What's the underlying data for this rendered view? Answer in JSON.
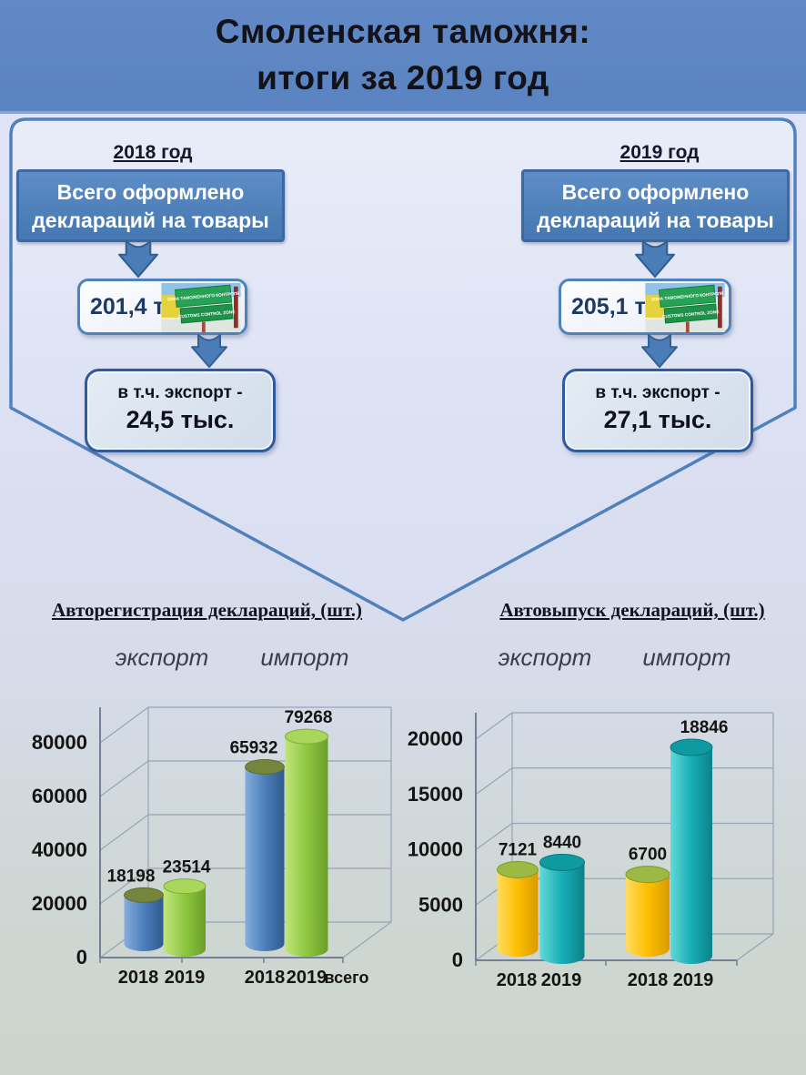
{
  "slide": {
    "title_line1": "Смоленская таможня:",
    "title_line2": "итоги за 2019 год"
  },
  "flow": {
    "years": [
      {
        "year_label": "2018 год",
        "box_line1": "Всего оформлено",
        "box_line2": "деклараций на товары",
        "total_value": "201,4 тыс.",
        "export_line1": "в т.ч. экспорт -",
        "export_value": "24,5 тыс."
      },
      {
        "year_label": "2019 год",
        "box_line1": "Всего оформлено",
        "box_line2": "деклараций на товары",
        "total_value": "205,1 тыс.",
        "export_line1": "в т.ч. экспорт -",
        "export_value": "27,1 тыс."
      }
    ],
    "sign": {
      "line1": "ЗОНА ТАМОЖЕННОГО КОНТРОЛЯ",
      "line2": "CUSTOMS CONTROL ZONE"
    }
  },
  "palette": {
    "blue": "#4d7fbb",
    "green": "#8fc742",
    "gold": "#fdbe00",
    "teal": "#16aeb4",
    "panel_border": "#4f81bd",
    "header_blue": "#5d86c4"
  },
  "chart_data": [
    {
      "type": "bar",
      "style": "3d-cylinder",
      "title": "Авторегистрация деклараций, (шт.)",
      "group_labels": [
        "экспорт",
        "импорт"
      ],
      "categories": [
        "2018",
        "2019",
        "2018",
        "2019",
        "всего"
      ],
      "bars": [
        {
          "group": "экспорт",
          "category": "2018",
          "value": 18198,
          "color": "blue"
        },
        {
          "group": "экспорт",
          "category": "2019",
          "value": 23514,
          "color": "green"
        },
        {
          "group": "импорт",
          "category": "2018",
          "value": 65932,
          "color": "blue"
        },
        {
          "group": "импорт",
          "category": "2019",
          "value": 79268,
          "color": "green"
        }
      ],
      "yticks": [
        0,
        20000,
        40000,
        60000,
        80000
      ],
      "ylim": [
        0,
        80000
      ],
      "grid": true,
      "legend": "none"
    },
    {
      "type": "bar",
      "style": "3d-cylinder",
      "title": "Автовыпуск деклараций, (шт.)",
      "group_labels": [
        "экспорт",
        "импорт"
      ],
      "categories": [
        "2018",
        "2019",
        "2018",
        "2019"
      ],
      "bars": [
        {
          "group": "экспорт",
          "category": "2018",
          "value": 7121,
          "color": "gold"
        },
        {
          "group": "экспорт",
          "category": "2019",
          "value": 8440,
          "color": "teal"
        },
        {
          "group": "импорт",
          "category": "2018",
          "value": 6700,
          "color": "gold"
        },
        {
          "group": "импорт",
          "category": "2019",
          "value": 18846,
          "color": "teal"
        }
      ],
      "yticks": [
        0,
        5000,
        10000,
        15000,
        20000
      ],
      "ylim": [
        0,
        20000
      ],
      "grid": true,
      "legend": "none"
    }
  ]
}
